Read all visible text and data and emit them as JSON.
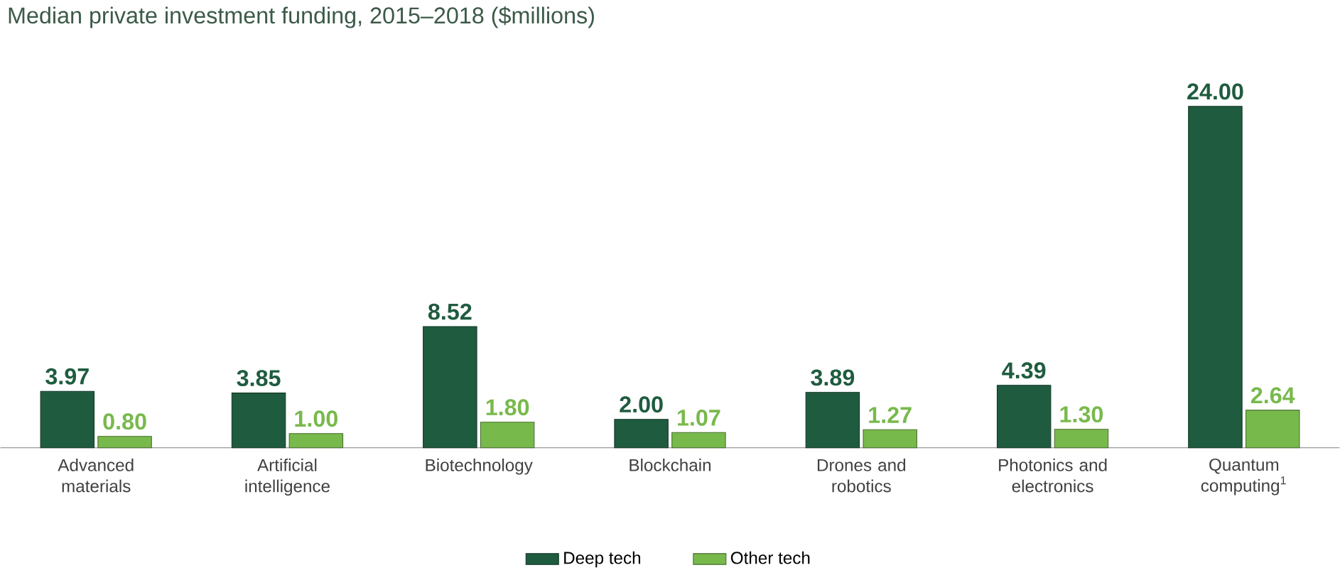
{
  "chart_data": {
    "type": "bar",
    "title": "Median private investment funding, 2015–2018 ($millions)",
    "categories": [
      "Advanced materials",
      "Artificial intelligence",
      "Biotechnology",
      "Blockchain",
      "Drones and robotics",
      "Photonics and electronics",
      "Quantum computing$^{1}$"
    ],
    "series": [
      {
        "name": "Deep tech",
        "color": "#1f5c3f",
        "values": [
          3.97,
          3.85,
          8.52,
          2.0,
          3.89,
          4.39,
          24.0
        ],
        "value_labels": [
          "3.97",
          "3.85",
          "8.52",
          "2.00",
          "3.89",
          "4.39",
          "24.00"
        ]
      },
      {
        "name": "Other tech",
        "color": "#78b94c",
        "values": [
          0.8,
          1.0,
          1.8,
          1.07,
          1.27,
          1.3,
          2.64
        ],
        "value_labels": [
          "0.80",
          "1.00",
          "1.80",
          "1.07",
          "1.27",
          "1.30",
          "2.64"
        ]
      }
    ],
    "legend": "bottom"
  }
}
